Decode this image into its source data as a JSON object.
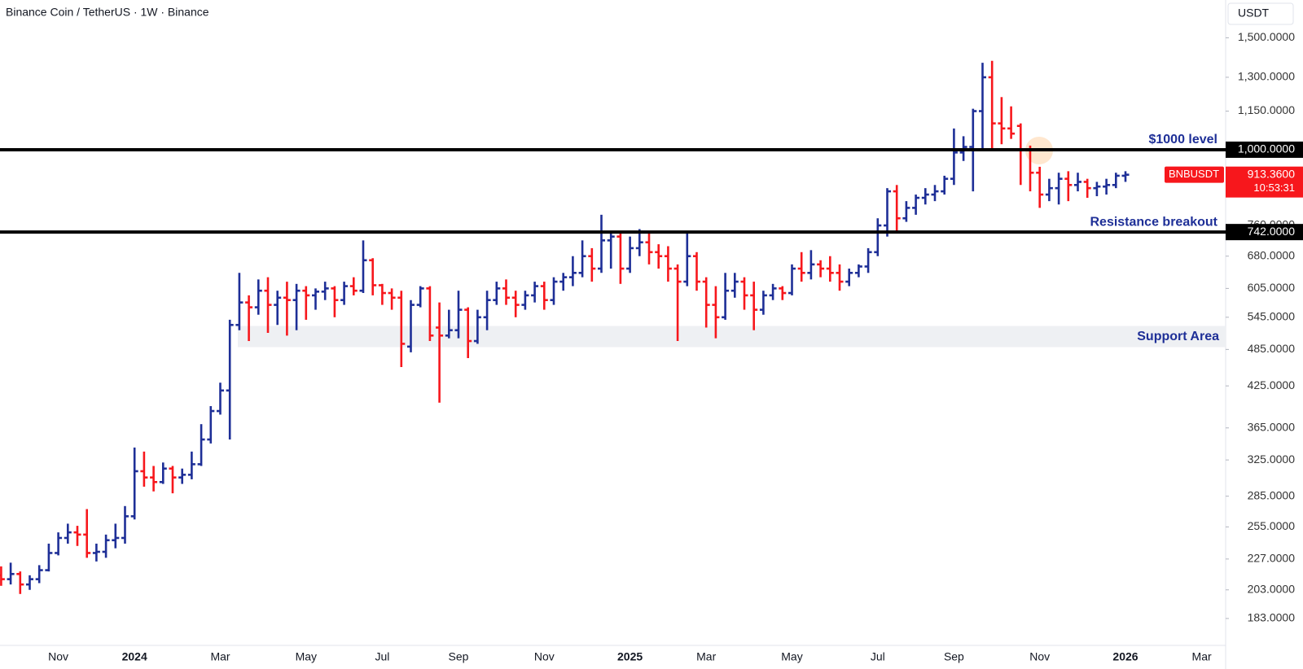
{
  "header": {
    "title": "Binance Coin / TetherUS · 1W · Binance",
    "currency": "USDT"
  },
  "chart_data": {
    "type": "ohlc",
    "log_scale": true,
    "up_color": "#1e2f97",
    "down_color": "#f7171c",
    "ylim": [
      166,
      1720
    ],
    "yticks": [
      {
        "value": 1500,
        "label": "1,500.0000"
      },
      {
        "value": 1300,
        "label": "1,300.0000"
      },
      {
        "value": 1150,
        "label": "1,150.0000"
      },
      {
        "value": 760,
        "label": "760.0000"
      },
      {
        "value": 680,
        "label": "680.0000"
      },
      {
        "value": 605,
        "label": "605.0000"
      },
      {
        "value": 545,
        "label": "545.0000"
      },
      {
        "value": 485,
        "label": "485.0000"
      },
      {
        "value": 425,
        "label": "425.0000"
      },
      {
        "value": 365,
        "label": "365.0000"
      },
      {
        "value": 325,
        "label": "325.0000"
      },
      {
        "value": 285,
        "label": "285.0000"
      },
      {
        "value": 255,
        "label": "255.0000"
      },
      {
        "value": 227,
        "label": "227.0000"
      },
      {
        "value": 203,
        "label": "203.0000"
      },
      {
        "value": 183,
        "label": "183.0000"
      }
    ],
    "categories": [
      null,
      null,
      null,
      null,
      null,
      null,
      "Nov",
      null,
      null,
      null,
      null,
      null,
      null,
      null,
      "2024",
      null,
      null,
      null,
      null,
      null,
      null,
      null,
      null,
      "Mar",
      null,
      null,
      null,
      null,
      null,
      null,
      null,
      null,
      "May",
      null,
      null,
      null,
      null,
      null,
      null,
      null,
      "Jul",
      null,
      null,
      null,
      null,
      null,
      null,
      null,
      "Sep",
      null,
      null,
      null,
      null,
      null,
      null,
      null,
      null,
      "Nov",
      null,
      null,
      null,
      null,
      null,
      null,
      null,
      null,
      "2025",
      null,
      null,
      null,
      null,
      null,
      null,
      null,
      "Mar",
      null,
      null,
      null,
      null,
      null,
      null,
      null,
      null,
      "May",
      null,
      null,
      null,
      null,
      null,
      null,
      null,
      null,
      "Jul",
      null,
      null,
      null,
      null,
      null,
      null,
      null,
      "Sep",
      null,
      null,
      null,
      null,
      null,
      null,
      null,
      null,
      "Nov",
      null,
      null,
      null,
      null,
      null,
      null,
      null,
      null,
      "2026",
      null,
      null,
      null,
      null,
      null,
      null,
      null,
      "Mar",
      null,
      null
    ],
    "series": [
      {
        "name": "BNBUSDT",
        "open": [
          214,
          211,
          215,
          207,
          211,
          218,
          232,
          245,
          250,
          248,
          232,
          233,
          243,
          245,
          265,
          312,
          305,
          300,
          315,
          305,
          308,
          320,
          350,
          388,
          418,
          530,
          575,
          565,
          600,
          570,
          585,
          580,
          600,
          590,
          598,
          605,
          580,
          610,
          600,
          670,
          612,
          595,
          585,
          490,
          570,
          605,
          525,
          510,
          520,
          560,
          500,
          545,
          580,
          605,
          585,
          570,
          590,
          610,
          580,
          620,
          630,
          640,
          680,
          650,
          720,
          730,
          650,
          700,
          715,
          690,
          680,
          650,
          620,
          680,
          620,
          570,
          545,
          600,
          620,
          590,
          560,
          590,
          605,
          595,
          650,
          640,
          660,
          650,
          640,
          620,
          640,
          655,
          690,
          760,
          860,
          780,
          810,
          840,
          850,
          860,
          900,
          990,
          1010,
          1150,
          1300,
          1100,
          1080,
          1090,
          1000,
          920,
          850,
          870,
          900,
          880,
          890,
          870,
          875,
          880,
          910,
          null,
          null,
          null,
          null,
          null,
          null,
          null,
          null,
          null,
          null
        ],
        "high": [
          221,
          224,
          217,
          214,
          222,
          240,
          250,
          258,
          256,
          272,
          240,
          248,
          258,
          275,
          340,
          335,
          318,
          322,
          318,
          315,
          335,
          370,
          395,
          430,
          540,
          640,
          590,
          625,
          630,
          600,
          620,
          615,
          610,
          605,
          620,
          610,
          620,
          630,
          720,
          675,
          615,
          605,
          600,
          580,
          610,
          610,
          575,
          560,
          600,
          565,
          560,
          600,
          620,
          625,
          600,
          600,
          620,
          620,
          630,
          640,
          680,
          720,
          700,
          790,
          740,
          740,
          730,
          750,
          740,
          710,
          705,
          660,
          740,
          690,
          630,
          610,
          640,
          640,
          630,
          620,
          600,
          615,
          610,
          660,
          690,
          695,
          670,
          680,
          660,
          650,
          660,
          700,
          780,
          870,
          880,
          830,
          850,
          870,
          880,
          910,
          1080,
          1050,
          1160,
          1370,
          1380,
          1210,
          1170,
          1100,
          1015,
          940,
          900,
          920,
          925,
          920,
          900,
          890,
          900,
          920,
          925,
          null,
          null,
          null,
          null,
          null,
          null,
          null,
          null,
          null,
          null
        ],
        "low": [
          206,
          207,
          200,
          203,
          208,
          217,
          230,
          240,
          238,
          228,
          225,
          228,
          236,
          240,
          262,
          295,
          290,
          298,
          288,
          298,
          303,
          318,
          345,
          383,
          350,
          520,
          500,
          550,
          515,
          530,
          510,
          520,
          540,
          560,
          580,
          545,
          570,
          590,
          595,
          590,
          570,
          560,
          455,
          480,
          565,
          500,
          400,
          505,
          505,
          470,
          495,
          520,
          570,
          570,
          545,
          560,
          575,
          560,
          570,
          600,
          610,
          630,
          620,
          640,
          650,
          615,
          640,
          680,
          660,
          650,
          620,
          500,
          610,
          600,
          525,
          505,
          540,
          585,
          560,
          520,
          550,
          580,
          580,
          590,
          620,
          625,
          630,
          620,
          600,
          610,
          630,
          640,
          680,
          730,
          740,
          770,
          790,
          820,
          830,
          850,
          880,
          960,
          860,
          1000,
          1000,
          1020,
          1040,
          880,
          860,
          810,
          830,
          820,
          830,
          860,
          840,
          845,
          850,
          870,
          890,
          null,
          null,
          null,
          null,
          null,
          null,
          null,
          null,
          null,
          null
        ],
        "close": [
          211,
          215,
          207,
          211,
          218,
          232,
          245,
          250,
          248,
          232,
          233,
          243,
          245,
          265,
          312,
          305,
          300,
          315,
          305,
          308,
          320,
          350,
          388,
          418,
          530,
          575,
          565,
          600,
          570,
          585,
          580,
          600,
          590,
          598,
          605,
          580,
          610,
          600,
          670,
          612,
          595,
          585,
          495,
          570,
          605,
          510,
          510,
          520,
          560,
          500,
          545,
          580,
          605,
          585,
          570,
          590,
          610,
          580,
          620,
          630,
          640,
          680,
          650,
          720,
          730,
          650,
          700,
          715,
          690,
          680,
          650,
          620,
          680,
          620,
          570,
          545,
          600,
          620,
          590,
          560,
          590,
          605,
          595,
          650,
          640,
          660,
          650,
          640,
          620,
          640,
          655,
          690,
          760,
          860,
          780,
          810,
          840,
          850,
          860,
          900,
          990,
          1010,
          1150,
          1300,
          1100,
          1080,
          1060,
          1000,
          920,
          850,
          870,
          900,
          880,
          890,
          870,
          875,
          880,
          910,
          913.36,
          null,
          null,
          null,
          null,
          null,
          null,
          null,
          null,
          null,
          null
        ]
      }
    ],
    "levels": [
      {
        "value": 1000,
        "label": "1,000.0000",
        "text": "$1000 level"
      },
      {
        "value": 742,
        "label": "742.0000",
        "text": "Resistance breakout"
      }
    ],
    "support_area": {
      "text": "Support Area",
      "low": 489,
      "high": 528
    },
    "last_price": {
      "label": "913.3600",
      "countdown": "10:53:31"
    }
  }
}
